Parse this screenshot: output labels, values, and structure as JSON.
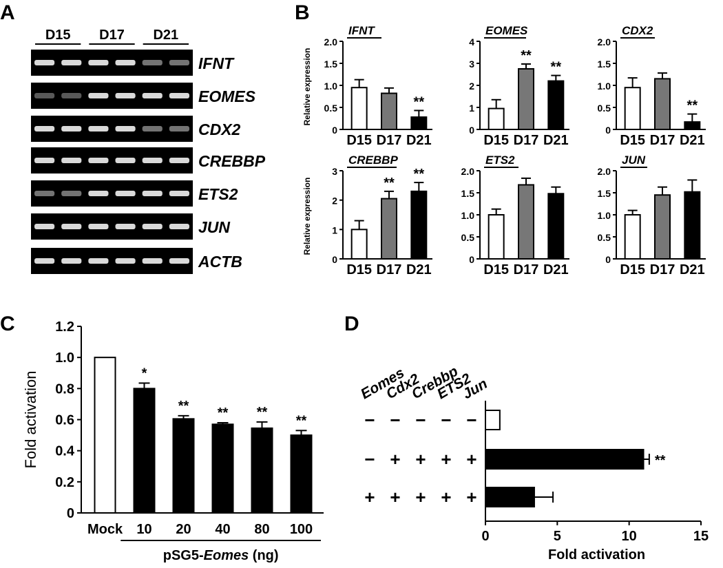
{
  "panels": {
    "a": "A",
    "b": "B",
    "c": "C",
    "d": "D"
  },
  "panel_a": {
    "groups": [
      "D15",
      "D17",
      "D21"
    ],
    "genes": [
      "IFNT",
      "EOMES",
      "CDX2",
      "CREBBP",
      "ETS2",
      "JUN",
      "ACTB"
    ],
    "lanes_per_group": 2
  },
  "chart_data": [
    {
      "id": "b",
      "type": "bar",
      "subplots": [
        {
          "gene": "IFNT",
          "ylabel": "Relative expression",
          "ylim": [
            0,
            2.0
          ],
          "ticks": [
            "0",
            "0.5",
            "1.0",
            "1.5",
            "2.0"
          ],
          "categories": [
            "D15",
            "D17",
            "D21"
          ],
          "values": [
            0.95,
            0.82,
            0.28
          ],
          "errors": [
            0.18,
            0.12,
            0.15
          ],
          "stars": [
            "",
            "",
            "**"
          ]
        },
        {
          "gene": "EOMES",
          "ylabel": "",
          "ylim": [
            0,
            4
          ],
          "ticks": [
            "0",
            "1",
            "2",
            "3",
            "4"
          ],
          "categories": [
            "D15",
            "D17",
            "D21"
          ],
          "values": [
            0.95,
            2.75,
            2.2
          ],
          "errors": [
            0.4,
            0.22,
            0.25
          ],
          "stars": [
            "",
            "**",
            "**"
          ]
        },
        {
          "gene": "CDX2",
          "ylabel": "",
          "ylim": [
            0,
            2.0
          ],
          "ticks": [
            "0",
            "0.5",
            "1.0",
            "1.5",
            "2.0"
          ],
          "categories": [
            "D15",
            "D17",
            "D21"
          ],
          "values": [
            0.95,
            1.15,
            0.17
          ],
          "errors": [
            0.22,
            0.13,
            0.18
          ],
          "stars": [
            "",
            "",
            "**"
          ]
        },
        {
          "gene": "CREBBP",
          "ylabel": "Relative expression",
          "ylim": [
            0,
            3
          ],
          "ticks": [
            "0",
            "1",
            "2",
            "3"
          ],
          "categories": [
            "D15",
            "D17",
            "D21"
          ],
          "values": [
            1.0,
            2.05,
            2.3
          ],
          "errors": [
            0.3,
            0.25,
            0.3
          ],
          "stars": [
            "",
            "**",
            "**"
          ]
        },
        {
          "gene": "ETS2",
          "ylabel": "",
          "ylim": [
            0,
            2.0
          ],
          "ticks": [
            "0",
            "0.5",
            "1.0",
            "1.5",
            "2.0"
          ],
          "categories": [
            "D15",
            "D17",
            "D21"
          ],
          "values": [
            1.0,
            1.68,
            1.48
          ],
          "errors": [
            0.13,
            0.15,
            0.15
          ],
          "stars": [
            "",
            "",
            ""
          ]
        },
        {
          "gene": "JUN",
          "ylabel": "",
          "ylim": [
            0,
            2.0
          ],
          "ticks": [
            "0",
            "0.5",
            "1.0",
            "1.5",
            "2.0"
          ],
          "categories": [
            "D15",
            "D17",
            "D21"
          ],
          "values": [
            1.0,
            1.45,
            1.52
          ],
          "errors": [
            0.1,
            0.18,
            0.27
          ],
          "stars": [
            "",
            "",
            ""
          ]
        }
      ]
    },
    {
      "id": "c",
      "type": "bar",
      "ylabel": "Fold activation",
      "ylim": [
        0,
        1.2
      ],
      "ticks": [
        "0",
        "0.2",
        "0.4",
        "0.6",
        "0.8",
        "1.0",
        "1.2"
      ],
      "categories": [
        "Mock",
        "10",
        "20",
        "40",
        "80",
        "100"
      ],
      "values": [
        1.0,
        0.8,
        0.605,
        0.57,
        0.545,
        0.5
      ],
      "errors": [
        0,
        0.035,
        0.02,
        0.01,
        0.04,
        0.03
      ],
      "stars": [
        "",
        "*",
        "**",
        "**",
        "**",
        "**"
      ],
      "group_label_prefix": "pSG5-",
      "group_label_italic": "Eomes",
      "group_label_suffix": " (ng)"
    },
    {
      "id": "d",
      "type": "bar",
      "orientation": "horizontal",
      "xlabel": "Fold activation",
      "xlim": [
        0,
        15
      ],
      "ticks": [
        "0",
        "5",
        "10",
        "15"
      ],
      "factors": [
        "Eomes",
        "Cdx2",
        "Crebbp",
        "ETS2",
        "Jun"
      ],
      "rows": [
        {
          "signs": [
            "−",
            "−",
            "−",
            "−",
            "−"
          ],
          "value": 1.0,
          "error": 0,
          "star": ""
        },
        {
          "signs": [
            "−",
            "+",
            "+",
            "+",
            "+"
          ],
          "value": 11.0,
          "error": 0.4,
          "star": "**"
        },
        {
          "signs": [
            "+",
            "+",
            "+",
            "+",
            "+"
          ],
          "value": 3.4,
          "error": 1.3,
          "star": ""
        }
      ]
    }
  ]
}
